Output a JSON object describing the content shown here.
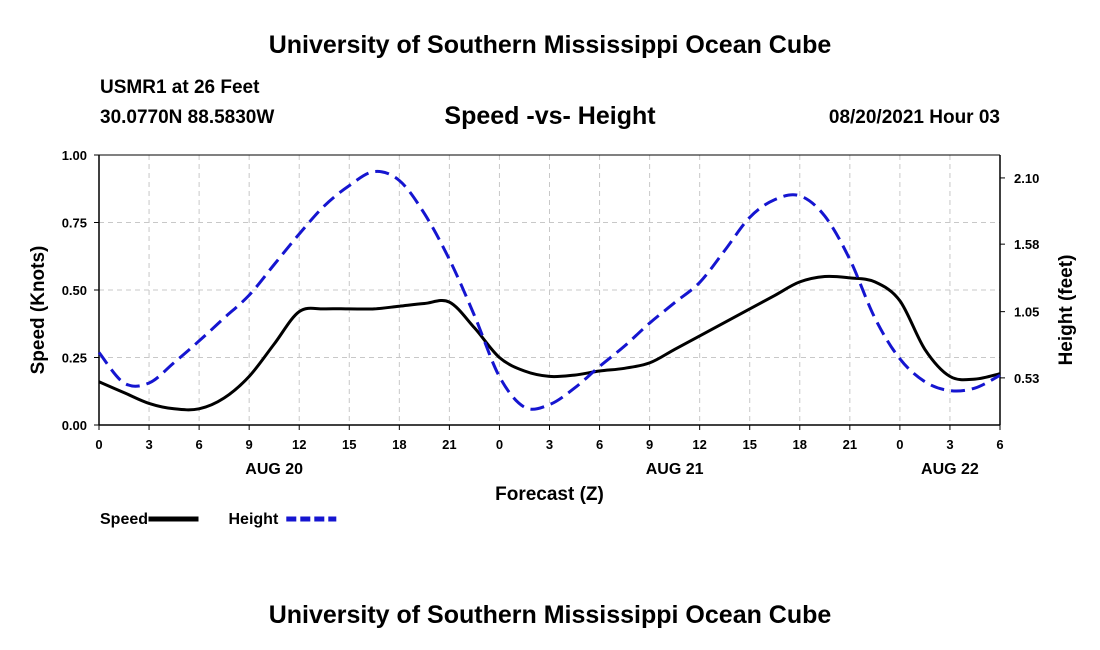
{
  "header": {
    "title_top": "University of Southern Mississippi Ocean Cube",
    "station": "USMR1 at 26 Feet",
    "coords": "30.0770N  88.5830W",
    "timestamp": "08/20/2021 Hour 03"
  },
  "footer": {
    "title_bottom": "University of Southern Mississippi Ocean Cube"
  },
  "chart_data": {
    "type": "line",
    "title": "Speed -vs- Height",
    "xlabel": "Forecast (Z)",
    "ylabel": "Speed (Knots)",
    "y2label": "Height (feet)",
    "x_unit": "hours from AUG 20 00Z",
    "xlim": [
      0,
      54
    ],
    "ylim": [
      0,
      1.0
    ],
    "y2lim": [
      0.16,
      2.28
    ],
    "x_ticks": [
      0,
      3,
      6,
      9,
      12,
      15,
      18,
      21,
      24,
      27,
      30,
      33,
      36,
      39,
      42,
      45,
      48,
      51,
      54
    ],
    "x_tick_labels": [
      "0",
      "3",
      "6",
      "9",
      "12",
      "15",
      "18",
      "21",
      "0",
      "3",
      "6",
      "9",
      "12",
      "15",
      "18",
      "21",
      "0",
      "3",
      "6"
    ],
    "day_labels": [
      {
        "label": "AUG 20",
        "x": 10.5
      },
      {
        "label": "AUG 21",
        "x": 34.5
      },
      {
        "label": "AUG 22",
        "x": 51
      }
    ],
    "y_ticks": [
      0,
      0.25,
      0.5,
      0.75,
      1.0
    ],
    "y_tick_labels": [
      "0.00",
      "0.25",
      "0.50",
      "0.75",
      "1.00"
    ],
    "y2_ticks": [
      0.53,
      1.05,
      1.58,
      2.1
    ],
    "y2_tick_labels": [
      "0.53",
      "1.05",
      "1.58",
      "2.10"
    ],
    "grid": true,
    "legend": [
      {
        "name": "Speed",
        "color": "#000000",
        "dashed": false
      },
      {
        "name": "Height",
        "color": "#1515d0",
        "dashed": true
      }
    ],
    "series": [
      {
        "name": "Speed",
        "axis": "left",
        "color": "#000000",
        "dashed": false,
        "x": [
          0,
          1.5,
          3,
          4.5,
          6,
          7.5,
          9,
          10.5,
          12,
          13.5,
          15,
          16.5,
          18,
          19.5,
          21,
          22.5,
          24,
          25.5,
          27,
          28.5,
          30,
          31.5,
          33,
          34.5,
          36,
          37.5,
          39,
          40.5,
          42,
          43.5,
          45,
          46.5,
          48,
          49.5,
          51,
          52.5,
          54
        ],
        "values": [
          0.16,
          0.12,
          0.08,
          0.06,
          0.06,
          0.1,
          0.18,
          0.3,
          0.42,
          0.43,
          0.43,
          0.43,
          0.44,
          0.45,
          0.455,
          0.36,
          0.25,
          0.2,
          0.18,
          0.185,
          0.2,
          0.21,
          0.23,
          0.28,
          0.33,
          0.38,
          0.43,
          0.48,
          0.53,
          0.55,
          0.545,
          0.53,
          0.46,
          0.28,
          0.18,
          0.17,
          0.19
        ]
      },
      {
        "name": "Height",
        "axis": "right",
        "color": "#1515d0",
        "dashed": true,
        "x": [
          0,
          1.5,
          3,
          4.5,
          6,
          7.5,
          9,
          10.5,
          12,
          13.5,
          15,
          16.5,
          18,
          19.5,
          21,
          22.5,
          24,
          25.5,
          27,
          28.5,
          30,
          31.5,
          33,
          34.5,
          36,
          37.5,
          39,
          40.5,
          42,
          43.5,
          45,
          46.5,
          48,
          49.5,
          51,
          52.5,
          54
        ],
        "values": [
          0.73,
          0.49,
          0.49,
          0.65,
          0.82,
          1.0,
          1.18,
          1.42,
          1.66,
          1.88,
          2.04,
          2.15,
          2.08,
          1.82,
          1.46,
          1.02,
          0.54,
          0.3,
          0.32,
          0.45,
          0.62,
          0.78,
          0.96,
          1.12,
          1.28,
          1.53,
          1.79,
          1.93,
          1.96,
          1.8,
          1.46,
          1.0,
          0.68,
          0.5,
          0.43,
          0.45,
          0.55
        ]
      }
    ]
  }
}
